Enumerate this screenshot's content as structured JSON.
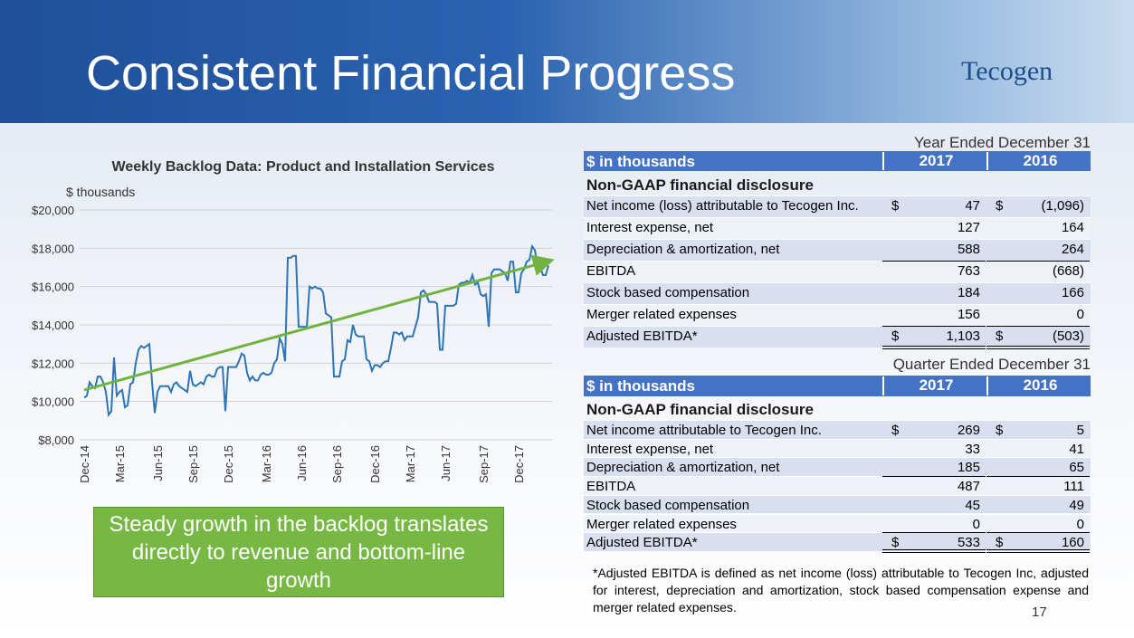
{
  "header": {
    "title": "Consistent Financial Progress",
    "logo": "Tecogen"
  },
  "chart_data": {
    "type": "line",
    "title": "Weekly Backlog Data: Product and Installation Services",
    "y_label": "$ thousands",
    "categories": [
      "Dec-14",
      null,
      null,
      null,
      null,
      null,
      null,
      null,
      null,
      null,
      null,
      null,
      null,
      "Mar-15",
      null,
      null,
      null,
      null,
      null,
      null,
      null,
      null,
      null,
      null,
      null,
      null,
      null,
      "Jun-15",
      null,
      null,
      null,
      null,
      null,
      null,
      null,
      null,
      null,
      null,
      null,
      null,
      "Sep-15",
      null,
      null,
      null,
      null,
      null,
      null,
      null,
      null,
      null,
      null,
      null,
      null,
      "Dec-15",
      null,
      null,
      null,
      null,
      null,
      null,
      null,
      null,
      null,
      null,
      null,
      null,
      null,
      "Mar-16",
      null,
      null,
      null,
      null,
      null,
      null,
      null,
      null,
      null,
      null,
      null,
      null,
      "Jun-16",
      null,
      null,
      null,
      null,
      null,
      null,
      null,
      null,
      null,
      null,
      null,
      null,
      "Sep-16",
      null,
      null,
      null,
      null,
      null,
      null,
      null,
      null,
      null,
      null,
      null,
      null,
      null,
      "Dec-16",
      null,
      null,
      null,
      null,
      null,
      null,
      null,
      null,
      null,
      null,
      null,
      null,
      "Mar-17",
      null,
      null,
      null,
      null,
      null,
      null,
      null,
      null,
      null,
      null,
      null,
      null,
      "Jun-17",
      null,
      null,
      null,
      null,
      null,
      null,
      null,
      null,
      null,
      null,
      null,
      null,
      null,
      "Sep-17",
      null,
      null,
      null,
      null,
      null,
      null,
      null,
      null,
      null,
      null,
      null,
      null,
      "Dec-17",
      null,
      null,
      null,
      null,
      null,
      null,
      null,
      null,
      null,
      null,
      null
    ],
    "series": [
      {
        "name": "Backlog",
        "color": "#2e75b6",
        "values": [
          10200,
          10300,
          11000,
          10800,
          10700,
          11300,
          11300,
          11000,
          10500,
          9300,
          9500,
          12300,
          10300,
          10500,
          10600,
          9700,
          9800,
          10900,
          11000,
          12000,
          12700,
          12900,
          12800,
          12900,
          13000,
          11000,
          9400,
          10500,
          10800,
          10800,
          10800,
          10800,
          10500,
          10900,
          11000,
          10800,
          10700,
          10600,
          10500,
          11600,
          10900,
          10800,
          10900,
          11000,
          10900,
          11300,
          11400,
          11300,
          11300,
          11700,
          11800,
          11800,
          9500,
          11800,
          11800,
          11800,
          11800,
          12100,
          12500,
          12400,
          11500,
          11100,
          11300,
          11100,
          11100,
          11400,
          11500,
          11400,
          11400,
          11500,
          12000,
          12200,
          13300,
          13000,
          12100,
          17500,
          17500,
          17600,
          17600,
          13900,
          13900,
          13900,
          13900,
          16000,
          15900,
          16000,
          15900,
          15900,
          15700,
          14600,
          14500,
          14400,
          11300,
          11300,
          11300,
          12100,
          12200,
          13200,
          13100,
          14000,
          13500,
          13400,
          13400,
          13400,
          12200,
          12100,
          11600,
          11900,
          11900,
          11800,
          12000,
          12100,
          12100,
          12800,
          13600,
          13600,
          13500,
          13600,
          13200,
          13400,
          13400,
          13400,
          13900,
          14400,
          15700,
          15800,
          15600,
          15200,
          15200,
          15200,
          15100,
          12700,
          12700,
          15000,
          15000,
          15000,
          15000,
          15100,
          16100,
          16200,
          16200,
          16300,
          16200,
          16600,
          16100,
          16200,
          15600,
          15500,
          15600,
          13900,
          16700,
          16900,
          16900,
          16900,
          16800,
          16700,
          16300,
          17300,
          17300,
          15700,
          15700,
          16700,
          16900,
          17300,
          17400,
          18100,
          17900,
          17100,
          17000,
          16600,
          16600,
          17100
        ]
      }
    ],
    "trend": {
      "color": "#70b33f",
      "values": [
        10600,
        17300
      ]
    },
    "ylim": [
      8000,
      20000
    ],
    "yticks": [
      {
        "value": 8000,
        "label": "$8,000"
      },
      {
        "value": 10000,
        "label": "$10,000"
      },
      {
        "value": 12000,
        "label": "$12,000"
      },
      {
        "value": 14000,
        "label": "$14,000"
      },
      {
        "value": 16000,
        "label": "$16,000"
      },
      {
        "value": 18000,
        "label": "$18,000"
      },
      {
        "value": 20000,
        "label": "$20,000"
      }
    ],
    "grid": true
  },
  "callout": "Steady growth in the backlog translates directly to revenue and bottom-line growth",
  "tables": [
    {
      "caption": "Year Ended December 31",
      "header": [
        "$ in thousands",
        "2017",
        "2016"
      ],
      "section": "Non-GAAP financial disclosure",
      "rows": [
        {
          "label": "Net income (loss) attributable to Tecogen Inc.",
          "currency": "$",
          "values": [
            "47",
            "(1,096)"
          ]
        },
        {
          "label": "Interest expense, net",
          "values": [
            "127",
            "164"
          ]
        },
        {
          "label": "Depreciation & amortization, net",
          "values": [
            "588",
            "264"
          ]
        },
        {
          "label": "EBITDA",
          "values": [
            "763",
            "(668)"
          ],
          "total": true
        },
        {
          "label": "Stock based compensation",
          "values": [
            "184",
            "166"
          ]
        },
        {
          "label": "Merger related expenses",
          "values": [
            "156",
            "0"
          ]
        },
        {
          "label": "Adjusted EBITDA*",
          "currency": "$",
          "values": [
            "1,103",
            "(503)"
          ],
          "total": true
        }
      ]
    },
    {
      "caption": "Quarter Ended December 31",
      "header": [
        "$ in thousands",
        "2017",
        "2016"
      ],
      "section": "Non-GAAP financial disclosure",
      "rows": [
        {
          "label": "Net income attributable to Tecogen Inc.",
          "currency": "$",
          "values": [
            "269",
            "5"
          ]
        },
        {
          "label": "Interest expense, net",
          "values": [
            "33",
            "41"
          ]
        },
        {
          "label": "Depreciation & amortization, net",
          "values": [
            "185",
            "65"
          ]
        },
        {
          "label": "EBITDA",
          "values": [
            "487",
            "111"
          ],
          "total": true
        },
        {
          "label": "Stock based compensation",
          "values": [
            "45",
            "49"
          ]
        },
        {
          "label": "Merger related expenses",
          "values": [
            "0",
            "0"
          ]
        },
        {
          "label": "Adjusted EBITDA*",
          "currency": "$",
          "values": [
            "533",
            "160"
          ],
          "total": true
        }
      ]
    }
  ],
  "footnote": "*Adjusted EBITDA is defined as net income (loss) attributable to Tecogen Inc, adjusted for interest, depreciation and amortization, stock based compensation expense and merger related expenses.",
  "page_number": "17"
}
